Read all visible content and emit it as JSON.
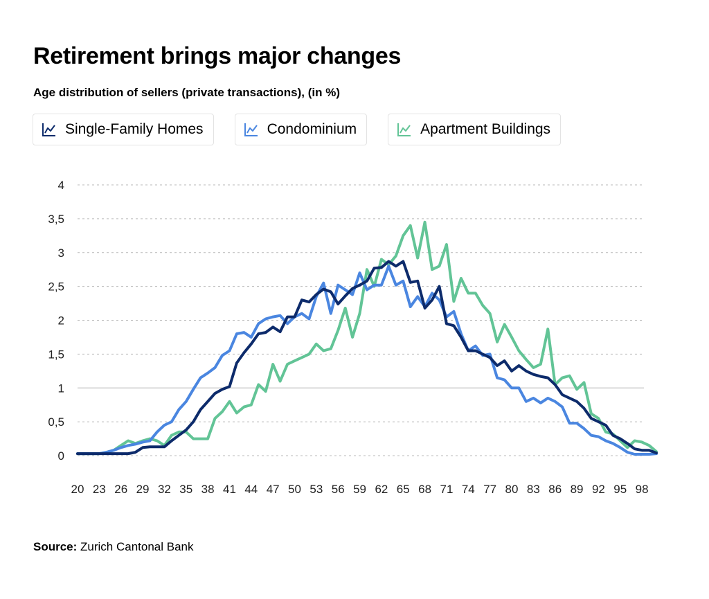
{
  "chart_data": {
    "type": "line",
    "title": "Retirement brings major changes",
    "subtitle": "Age distribution of sellers (private transactions), (in %)",
    "xlabel": "",
    "ylabel": "",
    "xlim": [
      20,
      100
    ],
    "ylim": [
      0,
      4
    ],
    "grid": true,
    "legend_position": "top-left",
    "x_ticks": [
      20,
      23,
      26,
      29,
      32,
      35,
      38,
      41,
      44,
      47,
      50,
      53,
      56,
      59,
      62,
      65,
      68,
      71,
      74,
      77,
      80,
      83,
      86,
      89,
      92,
      95,
      98
    ],
    "y_ticks": [
      {
        "value": 0,
        "label": "0"
      },
      {
        "value": 0.5,
        "label": "0,5"
      },
      {
        "value": 1,
        "label": "1"
      },
      {
        "value": 1.5,
        "label": "1,5"
      },
      {
        "value": 2,
        "label": "2"
      },
      {
        "value": 2.5,
        "label": "2,5"
      },
      {
        "value": 3,
        "label": "3"
      },
      {
        "value": 3.5,
        "label": "3,5"
      },
      {
        "value": 4,
        "label": "4"
      }
    ],
    "x": [
      20,
      21,
      22,
      23,
      24,
      25,
      26,
      27,
      28,
      29,
      30,
      31,
      32,
      33,
      34,
      35,
      36,
      37,
      38,
      39,
      40,
      41,
      42,
      43,
      44,
      45,
      46,
      47,
      48,
      49,
      50,
      51,
      52,
      53,
      54,
      55,
      56,
      57,
      58,
      59,
      60,
      61,
      62,
      63,
      64,
      65,
      66,
      67,
      68,
      69,
      70,
      71,
      72,
      73,
      74,
      75,
      76,
      77,
      78,
      79,
      80,
      81,
      82,
      83,
      84,
      85,
      86,
      87,
      88,
      89,
      90,
      91,
      92,
      93,
      94,
      95,
      96,
      97,
      98,
      99,
      100
    ],
    "series": [
      {
        "name": "Single-Family Homes",
        "color": "#0d2b6b",
        "values": [
          0.03,
          0.03,
          0.03,
          0.03,
          0.03,
          0.03,
          0.03,
          0.03,
          0.05,
          0.12,
          0.13,
          0.13,
          0.13,
          0.22,
          0.3,
          0.38,
          0.5,
          0.68,
          0.8,
          0.92,
          0.98,
          1.02,
          1.37,
          1.52,
          1.65,
          1.8,
          1.82,
          1.9,
          1.83,
          2.05,
          2.05,
          2.3,
          2.27,
          2.38,
          2.46,
          2.42,
          2.24,
          2.36,
          2.47,
          2.52,
          2.58,
          2.77,
          2.78,
          2.87,
          2.8,
          2.87,
          2.56,
          2.58,
          2.18,
          2.3,
          2.5,
          1.95,
          1.92,
          1.75,
          1.55,
          1.55,
          1.5,
          1.45,
          1.33,
          1.4,
          1.25,
          1.33,
          1.25,
          1.2,
          1.17,
          1.15,
          1.05,
          0.9,
          0.85,
          0.8,
          0.7,
          0.55,
          0.5,
          0.45,
          0.3,
          0.25,
          0.18,
          0.1,
          0.08,
          0.08,
          0.04
        ]
      },
      {
        "name": "Condominium",
        "color": "#4a86e0",
        "values": [
          0.03,
          0.03,
          0.03,
          0.03,
          0.05,
          0.08,
          0.12,
          0.15,
          0.17,
          0.2,
          0.22,
          0.35,
          0.45,
          0.5,
          0.68,
          0.8,
          0.98,
          1.15,
          1.22,
          1.3,
          1.48,
          1.55,
          1.8,
          1.82,
          1.75,
          1.95,
          2.02,
          2.05,
          2.07,
          1.95,
          2.05,
          2.1,
          2.02,
          2.35,
          2.55,
          2.1,
          2.52,
          2.45,
          2.38,
          2.7,
          2.45,
          2.52,
          2.52,
          2.8,
          2.52,
          2.58,
          2.2,
          2.35,
          2.2,
          2.4,
          2.3,
          2.05,
          2.13,
          1.8,
          1.55,
          1.62,
          1.48,
          1.5,
          1.15,
          1.12,
          1.0,
          1.0,
          0.8,
          0.85,
          0.78,
          0.85,
          0.8,
          0.72,
          0.48,
          0.48,
          0.4,
          0.3,
          0.28,
          0.22,
          0.18,
          0.12,
          0.05,
          0.02,
          0.02,
          0.02,
          0.03
        ]
      },
      {
        "name": "Apartment Buildings",
        "color": "#62c496",
        "values": [
          0.03,
          0.03,
          0.03,
          0.03,
          0.05,
          0.08,
          0.15,
          0.22,
          0.18,
          0.22,
          0.25,
          0.22,
          0.15,
          0.3,
          0.35,
          0.35,
          0.25,
          0.25,
          0.25,
          0.55,
          0.65,
          0.8,
          0.63,
          0.72,
          0.75,
          1.05,
          0.95,
          1.35,
          1.1,
          1.35,
          1.4,
          1.45,
          1.5,
          1.65,
          1.55,
          1.58,
          1.85,
          2.18,
          1.75,
          2.1,
          2.75,
          2.5,
          2.9,
          2.82,
          2.95,
          3.25,
          3.4,
          2.92,
          3.45,
          2.75,
          2.8,
          3.12,
          2.28,
          2.62,
          2.4,
          2.4,
          2.22,
          2.1,
          1.68,
          1.94,
          1.75,
          1.55,
          1.42,
          1.3,
          1.35,
          1.87,
          1.05,
          1.15,
          1.18,
          0.98,
          1.08,
          0.62,
          0.55,
          0.35,
          0.32,
          0.22,
          0.12,
          0.22,
          0.2,
          0.15,
          0.06
        ]
      }
    ]
  },
  "source": {
    "label": "Source:",
    "text": "Zurich Cantonal Bank"
  },
  "icons": {
    "legend_icon": "line-chart-icon"
  }
}
